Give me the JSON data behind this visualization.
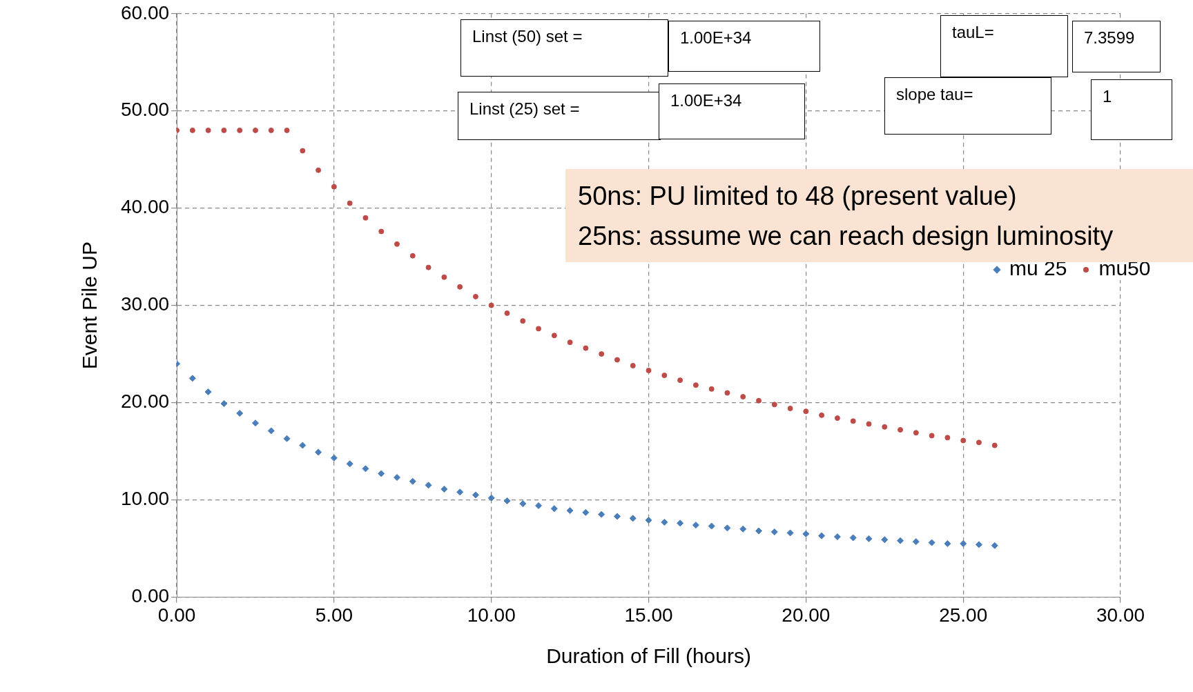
{
  "chart_data": {
    "type": "scatter",
    "xlabel": "Duration of Fill (hours)",
    "ylabel": "Event Pile UP",
    "x": [
      0,
      0.5,
      1,
      1.5,
      2,
      2.5,
      3,
      3.5,
      4,
      4.5,
      5,
      5.5,
      6,
      6.5,
      7,
      7.5,
      8,
      8.5,
      9,
      9.5,
      10,
      10.5,
      11,
      11.5,
      12,
      12.5,
      13,
      13.5,
      14,
      14.5,
      15,
      15.5,
      16,
      16.5,
      17,
      17.5,
      18,
      18.5,
      19,
      19.5,
      20,
      20.5,
      21,
      21.5,
      22,
      22.5,
      23,
      23.5,
      24,
      24.5,
      25,
      25.5,
      26
    ],
    "series": [
      {
        "name": "mu 25",
        "color": "#4a7ebb",
        "marker": "diamond",
        "values": [
          24.0,
          22.5,
          21.1,
          19.9,
          18.9,
          17.9,
          17.1,
          16.3,
          15.6,
          14.9,
          14.3,
          13.7,
          13.2,
          12.7,
          12.3,
          11.9,
          11.5,
          11.1,
          10.8,
          10.5,
          10.2,
          9.9,
          9.6,
          9.4,
          9.1,
          8.9,
          8.7,
          8.5,
          8.3,
          8.1,
          7.9,
          7.7,
          7.6,
          7.4,
          7.3,
          7.1,
          7.0,
          6.8,
          6.7,
          6.6,
          6.5,
          6.3,
          6.2,
          6.1,
          6.0,
          5.9,
          5.8,
          5.7,
          5.6,
          5.5,
          5.5,
          5.4,
          5.3
        ]
      },
      {
        "name": "mu50",
        "color": "#be4b48",
        "marker": "circle",
        "values": [
          48.0,
          48.0,
          48.0,
          48.0,
          48.0,
          48.0,
          48.0,
          48.0,
          45.9,
          43.9,
          42.2,
          40.5,
          39.0,
          37.6,
          36.3,
          35.1,
          33.9,
          32.9,
          31.9,
          30.9,
          30.0,
          29.2,
          28.4,
          27.6,
          26.9,
          26.2,
          25.6,
          25.0,
          24.4,
          23.8,
          23.3,
          22.8,
          22.3,
          21.8,
          21.4,
          21.0,
          20.6,
          20.2,
          19.8,
          19.4,
          19.1,
          18.7,
          18.4,
          18.1,
          17.8,
          17.5,
          17.2,
          16.9,
          16.6,
          16.4,
          16.1,
          15.9,
          15.6
        ]
      }
    ],
    "xlim": [
      0,
      30
    ],
    "xticks": [
      {
        "value": 0,
        "label": "0.00"
      },
      {
        "value": 5,
        "label": "5.00"
      },
      {
        "value": 10,
        "label": "10.00"
      },
      {
        "value": 15,
        "label": "15.00"
      },
      {
        "value": 20,
        "label": "20.00"
      },
      {
        "value": 25,
        "label": "25.00"
      },
      {
        "value": 30,
        "label": "30.00"
      }
    ],
    "ylim": [
      0,
      60
    ],
    "yticks": [
      {
        "value": 0,
        "label": "0.00"
      },
      {
        "value": 10,
        "label": "10.00"
      },
      {
        "value": 20,
        "label": "20.00"
      },
      {
        "value": 30,
        "label": "30.00"
      },
      {
        "value": 40,
        "label": "40.00"
      },
      {
        "value": 50,
        "label": "50.00"
      },
      {
        "value": 60,
        "label": "60.00"
      }
    ],
    "grid": true,
    "line_style": "dashed",
    "legend": "right",
    "annotations": [
      "Linst (50) set =",
      "1.00E+34",
      "tauL=",
      "7.3599",
      "Linst (25) set =",
      "1.00E+34",
      "slope tau=",
      "1",
      "50ns: PU limited to 48 (present value)",
      "25ns: assume we can reach design luminosity"
    ]
  }
}
